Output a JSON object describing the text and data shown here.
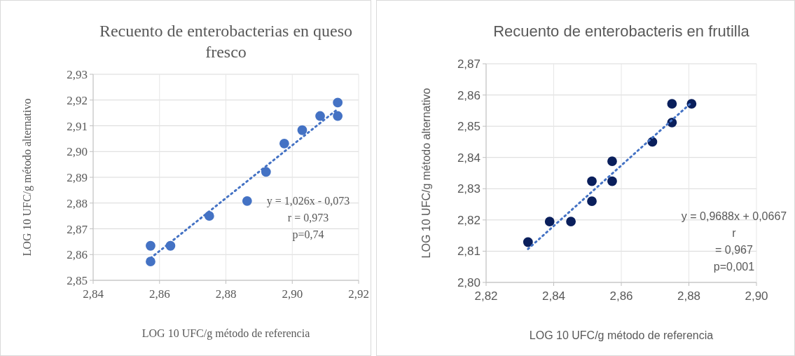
{
  "chart_data": [
    {
      "type": "scatter",
      "title": "Recuento de enterobacterias en queso fresco",
      "xlabel": "LOG 10 UFC/g método de referencia",
      "ylabel": "LOG 10 UFC/g método alternativo",
      "xlim": [
        2.84,
        2.92
      ],
      "ylim": [
        2.85,
        2.93
      ],
      "grid": true,
      "marker": "circle",
      "xticks": [
        {
          "value": 2.84,
          "label": "2,84"
        },
        {
          "value": 2.86,
          "label": "2,86"
        },
        {
          "value": 2.88,
          "label": "2,88"
        },
        {
          "value": 2.9,
          "label": "2,90"
        },
        {
          "value": 2.92,
          "label": "2,92"
        }
      ],
      "yticks": [
        {
          "value": 2.85,
          "label": "2,85"
        },
        {
          "value": 2.86,
          "label": "2,86"
        },
        {
          "value": 2.87,
          "label": "2,87"
        },
        {
          "value": 2.88,
          "label": "2,88"
        },
        {
          "value": 2.89,
          "label": "2,89"
        },
        {
          "value": 2.9,
          "label": "2,90"
        },
        {
          "value": 2.91,
          "label": "2,91"
        },
        {
          "value": 2.92,
          "label": "2,92"
        },
        {
          "value": 2.93,
          "label": "2,93"
        }
      ],
      "annotations": [
        "y = 1,026x - 0,073",
        "r = 0,973",
        "p=0,74"
      ],
      "series": [
        {
          "color": "#4472c4",
          "x": [
            2.8573,
            2.8573,
            2.8633,
            2.875,
            2.8864,
            2.8921,
            2.8976,
            2.903,
            2.9084,
            2.9137,
            2.9137
          ],
          "values": [
            2.8634,
            2.8573,
            2.8634,
            2.875,
            2.8808,
            2.8921,
            2.9031,
            2.9083,
            2.9138,
            2.9138,
            2.919
          ]
        },
        {
          "type": "line",
          "color": "#4472c4",
          "marker": "none",
          "line_style": "dotted",
          "x": [
            2.8573,
            2.9137
          ],
          "values": [
            2.8586,
            2.9165
          ]
        }
      ]
    },
    {
      "type": "scatter",
      "title": "Recuento de enterobacteris en frutilla",
      "xlabel": "LOG 10 UFC/g método de referencia",
      "ylabel": "LOG 10 UFC/g método alternativo",
      "xlim": [
        2.82,
        2.9
      ],
      "ylim": [
        2.8,
        2.87
      ],
      "grid": true,
      "marker": "circle",
      "xticks": [
        {
          "value": 2.82,
          "label": "2,82"
        },
        {
          "value": 2.84,
          "label": "2,84"
        },
        {
          "value": 2.86,
          "label": "2,86"
        },
        {
          "value": 2.88,
          "label": "2,88"
        },
        {
          "value": 2.9,
          "label": "2,90"
        }
      ],
      "yticks": [
        {
          "value": 2.8,
          "label": "2,80"
        },
        {
          "value": 2.81,
          "label": "2,81"
        },
        {
          "value": 2.82,
          "label": "2,82"
        },
        {
          "value": 2.83,
          "label": "2,83"
        },
        {
          "value": 2.84,
          "label": "2,84"
        },
        {
          "value": 2.85,
          "label": "2,85"
        },
        {
          "value": 2.86,
          "label": "2,86"
        },
        {
          "value": 2.87,
          "label": "2,87"
        }
      ],
      "annotations": [
        "y = 0,9688x + 0,0667",
        "r",
        "= 0,967",
        "p=0,001"
      ],
      "series": [
        {
          "color": "#0a1f5c",
          "x": [
            2.8324,
            2.8388,
            2.8451,
            2.8513,
            2.8513,
            2.8573,
            2.8573,
            2.8692,
            2.875,
            2.875,
            2.8808
          ],
          "values": [
            2.8129,
            2.8195,
            2.8195,
            2.8324,
            2.826,
            2.8388,
            2.8324,
            2.845,
            2.8512,
            2.8572,
            2.8572
          ]
        },
        {
          "type": "line",
          "color": "#4472c4",
          "marker": "none",
          "line_style": "dotted",
          "x": [
            2.8324,
            2.8808
          ],
          "values": [
            2.8107,
            2.8576
          ]
        }
      ]
    }
  ]
}
